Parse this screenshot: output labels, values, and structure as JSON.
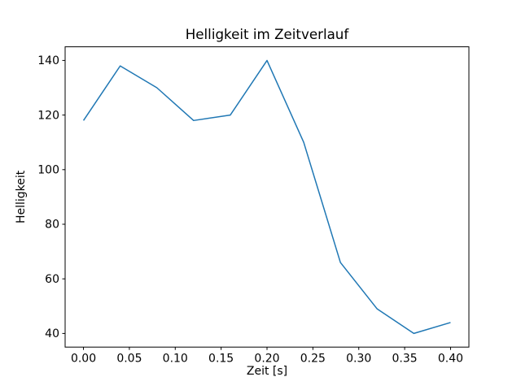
{
  "figure": {
    "background_color": "#ffffff",
    "line_color": "#1f77b4",
    "spine_color": "#000000",
    "line_width": 1.5
  },
  "chart_data": {
    "type": "line",
    "title": "Helligkeit im Zeitverlauf",
    "xlabel": "Zeit [s]",
    "ylabel": "Helligkeit",
    "x": [
      0.0,
      0.04,
      0.08,
      0.12,
      0.16,
      0.2,
      0.24,
      0.28,
      0.32,
      0.36,
      0.4
    ],
    "series": [
      {
        "name": "Helligkeit",
        "color": "#1f77b4",
        "values": [
          118,
          138,
          130,
          118,
          120,
          140,
          110,
          66,
          49,
          40,
          44
        ]
      }
    ],
    "xlim": [
      -0.02,
      0.42
    ],
    "ylim": [
      35,
      145
    ],
    "x_ticks": {
      "values": [
        0.0,
        0.05,
        0.1,
        0.15,
        0.2,
        0.25,
        0.3,
        0.35,
        0.4
      ],
      "labels": [
        "0.00",
        "0.05",
        "0.10",
        "0.15",
        "0.20",
        "0.25",
        "0.30",
        "0.35",
        "0.40"
      ]
    },
    "y_ticks": {
      "values": [
        40,
        60,
        80,
        100,
        120,
        140
      ],
      "labels": [
        "40",
        "60",
        "80",
        "100",
        "120",
        "140"
      ]
    },
    "grid": false,
    "legend": "none"
  }
}
